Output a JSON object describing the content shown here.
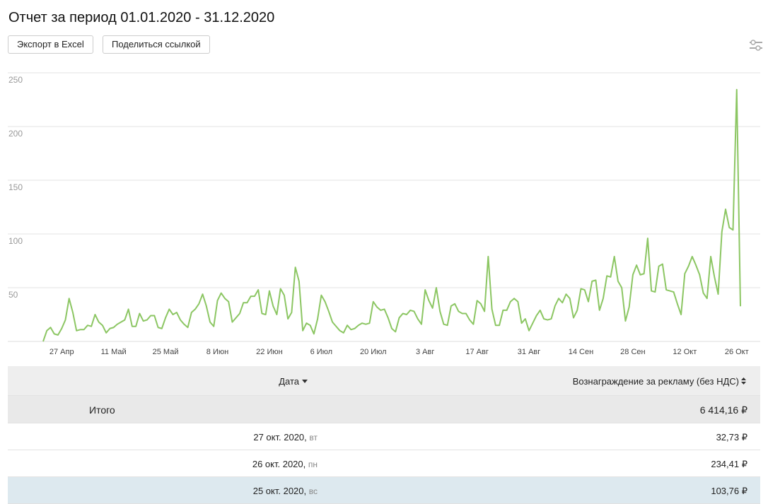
{
  "header": {
    "title": "Отчет за период 01.01.2020 - 31.12.2020",
    "buttons": [
      "Экспорт в Excel",
      "Поделиться ссылкой"
    ]
  },
  "chart_data": {
    "type": "line",
    "color": "#8cc663",
    "grid": true,
    "ylim": [
      0,
      250
    ],
    "yticks": [
      50,
      100,
      150,
      200,
      250
    ],
    "categories": [
      null,
      null,
      null,
      null,
      null,
      "27 Апр",
      null,
      null,
      null,
      null,
      null,
      null,
      null,
      null,
      null,
      null,
      null,
      null,
      null,
      "11 Май",
      null,
      null,
      null,
      null,
      null,
      null,
      null,
      null,
      null,
      null,
      null,
      null,
      null,
      "25 Май",
      null,
      null,
      null,
      null,
      null,
      null,
      null,
      null,
      null,
      null,
      null,
      null,
      null,
      "8 Июн",
      null,
      null,
      null,
      null,
      null,
      null,
      null,
      null,
      null,
      null,
      null,
      null,
      null,
      "22 Июн",
      null,
      null,
      null,
      null,
      null,
      null,
      null,
      null,
      null,
      null,
      null,
      null,
      null,
      "6 Июл",
      null,
      null,
      null,
      null,
      null,
      null,
      null,
      null,
      null,
      null,
      null,
      null,
      null,
      "20 Июл",
      null,
      null,
      null,
      null,
      null,
      null,
      null,
      null,
      null,
      null,
      null,
      null,
      null,
      "3 Авг",
      null,
      null,
      null,
      null,
      null,
      null,
      null,
      null,
      null,
      null,
      null,
      null,
      null,
      "17 Авг",
      null,
      null,
      null,
      null,
      null,
      null,
      null,
      null,
      null,
      null,
      null,
      null,
      null,
      "31 Авг",
      null,
      null,
      null,
      null,
      null,
      null,
      null,
      null,
      null,
      null,
      null,
      null,
      null,
      "14 Сен",
      null,
      null,
      null,
      null,
      null,
      null,
      null,
      null,
      null,
      null,
      null,
      null,
      null,
      "28 Сен",
      null,
      null,
      null,
      null,
      null,
      null,
      null,
      null,
      null,
      null,
      null,
      null,
      null,
      "12 Окт",
      null,
      null,
      null,
      null,
      null,
      null,
      null,
      null,
      null,
      null,
      null,
      null,
      null,
      "26 Окт",
      null
    ],
    "values": [
      0,
      10,
      13,
      7,
      6,
      12,
      20,
      40,
      27,
      10,
      11,
      11,
      15,
      14,
      25,
      18,
      15,
      8,
      12,
      13,
      16,
      18,
      20,
      30,
      14,
      14,
      26,
      19,
      20,
      24,
      24,
      13,
      12,
      22,
      30,
      25,
      27,
      20,
      16,
      13,
      27,
      30,
      35,
      44,
      33,
      18,
      14,
      38,
      45,
      40,
      37,
      18,
      22,
      26,
      36,
      36,
      42,
      42,
      48,
      26,
      25,
      47,
      33,
      25,
      49,
      43,
      21,
      27,
      69,
      56,
      10,
      17,
      15,
      7,
      21,
      43,
      37,
      28,
      18,
      14,
      10,
      8,
      15,
      11,
      12,
      15,
      17,
      16,
      17,
      37,
      32,
      29,
      30,
      22,
      12,
      9,
      22,
      26,
      25,
      29,
      28,
      21,
      16,
      48,
      38,
      31,
      50,
      28,
      16,
      15,
      33,
      35,
      28,
      26,
      26,
      20,
      16,
      38,
      35,
      28,
      79,
      30,
      15,
      15,
      29,
      29,
      37,
      40,
      37,
      17,
      21,
      10,
      17,
      24,
      29,
      21,
      20,
      21,
      33,
      40,
      36,
      44,
      40,
      22,
      29,
      49,
      48,
      37,
      56,
      57,
      29,
      40,
      61,
      60,
      79,
      56,
      50,
      19,
      32,
      62,
      71,
      62,
      63,
      96,
      47,
      46,
      70,
      72,
      48,
      47,
      46,
      35,
      25,
      63,
      70,
      79,
      71,
      62,
      45,
      40,
      79,
      60,
      44,
      102,
      123,
      106,
      103.76,
      234.41,
      32.73
    ]
  },
  "table": {
    "columns": [
      "Дата",
      "Вознаграждение за рекламу (без НДС)"
    ],
    "total": {
      "label": "Итого",
      "value": "6 414,16 ₽"
    },
    "rows": [
      {
        "date": "27 окт. 2020,",
        "weekday": "вт",
        "value": "32,73 ₽"
      },
      {
        "date": "26 окт. 2020,",
        "weekday": "пн",
        "value": "234,41 ₽"
      },
      {
        "date": "25 окт. 2020,",
        "weekday": "вс",
        "value": "103,76 ₽"
      }
    ]
  }
}
